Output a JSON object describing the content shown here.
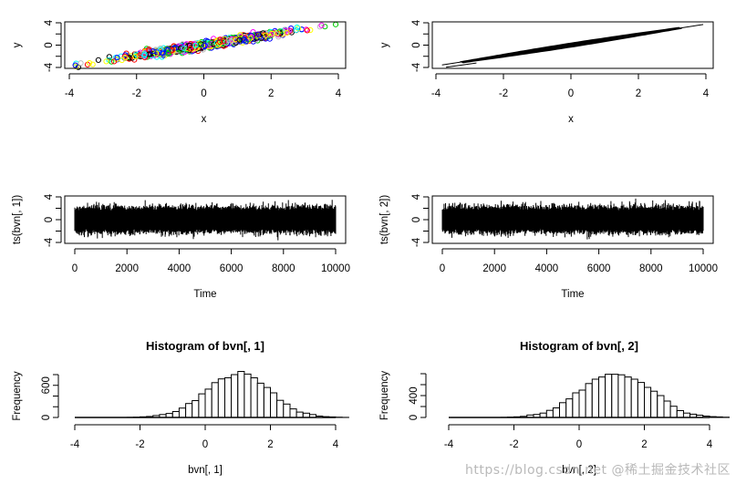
{
  "chart_data": [
    {
      "id": "scatter",
      "type": "scatter",
      "title": "",
      "xlabel": "x",
      "ylabel": "y",
      "xlim": [
        -4,
        4
      ],
      "ylim": [
        -4,
        4
      ],
      "xticks": [
        -4,
        -2,
        0,
        2,
        4
      ],
      "yticks": [
        -4,
        -2,
        0,
        2,
        4
      ],
      "ytick_labels": [
        "-4",
        "",
        "0",
        "",
        "4"
      ],
      "point_style": "open circles, rainbow colors",
      "colors": [
        "#000000",
        "#ff0000",
        "#00cd00",
        "#0000ff",
        "#00ffff",
        "#ff00ff",
        "#ffff00",
        "#bebebe"
      ],
      "trend": {
        "x_start": -3.8,
        "x_end": 3.9,
        "y_start": -3.6,
        "y_end": 3.7,
        "spread": 0.35
      },
      "n_points": 10000
    },
    {
      "id": "line",
      "type": "line",
      "title": "",
      "xlabel": "x",
      "ylabel": "y",
      "xlim": [
        -4,
        4
      ],
      "ylim": [
        -4,
        4
      ],
      "xticks": [
        -4,
        -2,
        0,
        2,
        4
      ],
      "yticks": [
        -4,
        -2,
        0,
        2,
        4
      ],
      "ytick_labels": [
        "-4",
        "",
        "0",
        "",
        "4"
      ],
      "trend": {
        "x_start": -3.8,
        "x_end": 3.9,
        "y_start": -3.6,
        "y_end": 3.7,
        "spread": 0.35
      },
      "color": "#000000"
    },
    {
      "id": "ts1",
      "type": "line",
      "title": "",
      "xlabel": "Time",
      "ylabel": "ts(bvn[, 1])",
      "xlim": [
        0,
        10000
      ],
      "ylim": [
        -4,
        4
      ],
      "xticks": [
        0,
        2000,
        4000,
        6000,
        8000,
        10000
      ],
      "yticks": [
        -4,
        -2,
        0,
        2,
        4
      ],
      "ytick_labels": [
        "-4",
        "",
        "0",
        "",
        "4"
      ],
      "n": 10000,
      "series_summary": {
        "mean": 0,
        "sd": 1,
        "min": -3.8,
        "max": 3.9
      }
    },
    {
      "id": "ts2",
      "type": "line",
      "title": "",
      "xlabel": "Time",
      "ylabel": "ts(bvn[, 2])",
      "xlim": [
        0,
        10000
      ],
      "ylim": [
        -4,
        4
      ],
      "xticks": [
        0,
        2000,
        4000,
        6000,
        8000,
        10000
      ],
      "yticks": [
        -4,
        -2,
        0,
        2,
        4
      ],
      "ytick_labels": [
        "-4",
        "",
        "0",
        "",
        "4"
      ],
      "n": 10000,
      "series_summary": {
        "mean": 0,
        "sd": 1,
        "min": -3.7,
        "max": 3.7
      }
    },
    {
      "id": "hist1",
      "type": "bar",
      "title": "Histogram of bvn[, 1]",
      "xlabel": "bvn[, 1]",
      "ylabel": "Frequency",
      "xlim": [
        -4,
        4
      ],
      "ylim": [
        0,
        800
      ],
      "xticks": [
        -4,
        -2,
        0,
        2,
        4
      ],
      "yticks": [
        0,
        200,
        400,
        600,
        800
      ],
      "ytick_labels": [
        "0",
        "",
        "",
        "600",
        ""
      ],
      "bin_start": -4.0,
      "bin_width": 0.2,
      "values": [
        0,
        0,
        0,
        0,
        0,
        0,
        0,
        0,
        2,
        5,
        12,
        18,
        35,
        55,
        75,
        110,
        175,
        260,
        315,
        440,
        530,
        650,
        720,
        740,
        800,
        860,
        810,
        740,
        640,
        560,
        460,
        320,
        250,
        160,
        100,
        80,
        55,
        25,
        15,
        10,
        5,
        2,
        0,
        0
      ]
    },
    {
      "id": "hist2",
      "type": "bar",
      "title": "Histogram of bvn[, 2]",
      "xlabel": "bvn[, 2]",
      "ylabel": "Frequency",
      "xlim": [
        -4,
        4
      ],
      "ylim": [
        0,
        800
      ],
      "xticks": [
        -4,
        -2,
        0,
        2,
        4
      ],
      "yticks": [
        0,
        200,
        400,
        600,
        800
      ],
      "ytick_labels": [
        "0",
        "",
        "400",
        "",
        ""
      ],
      "bin_start": -4.2,
      "bin_width": 0.2,
      "values": [
        0,
        0,
        0,
        0,
        0,
        0,
        0,
        0,
        0,
        2,
        6,
        12,
        20,
        45,
        55,
        80,
        130,
        175,
        270,
        340,
        450,
        500,
        620,
        700,
        740,
        790,
        790,
        780,
        740,
        700,
        640,
        550,
        480,
        400,
        300,
        205,
        125,
        80,
        60,
        42,
        25,
        15,
        10,
        5,
        2,
        0
      ]
    }
  ],
  "watermark": "https://blog.csdn.net  @稀土掘金技术社区"
}
